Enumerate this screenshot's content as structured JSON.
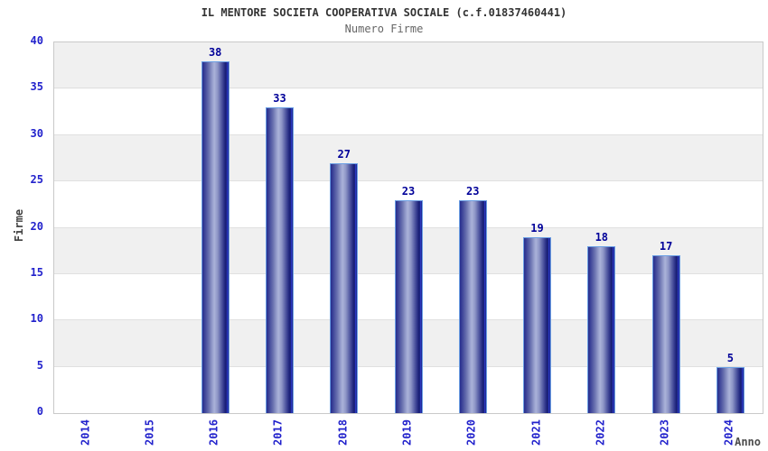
{
  "header": {
    "title": "IL MENTORE SOCIETA COOPERATIVA SOCIALE (c.f.01837460441)",
    "subtitle": "Numero Firme"
  },
  "chart_data": {
    "type": "bar",
    "title": "IL MENTORE SOCIETA COOPERATIVA SOCIALE (c.f.01837460441)",
    "subtitle": "Numero Firme",
    "xlabel": "Anno",
    "ylabel": "Firme",
    "categories": [
      "2014",
      "2015",
      "2016",
      "2017",
      "2018",
      "2019",
      "2020",
      "2021",
      "2022",
      "2023",
      "2024"
    ],
    "values": [
      0,
      0,
      38,
      33,
      27,
      23,
      23,
      19,
      18,
      17,
      5
    ],
    "ylim": [
      0,
      40
    ],
    "ytick_step": 5,
    "y_ticks": [
      0,
      5,
      10,
      15,
      20,
      25,
      30,
      35,
      40
    ],
    "grid": "horizontal-bands-alternating",
    "legend_position": "none",
    "bar_value_labels_shown": true,
    "colors": {
      "bar_dark": "#1a2078",
      "bar_light": "#aab2d8",
      "bar_edge_highlight": "#2e3fd4",
      "bar_border": "#6b9fe4",
      "tick_label": "#2222cc",
      "value_label": "#000099",
      "band_gray": "#f0f0f0",
      "band_white": "#ffffff",
      "gridline": "#e0e0e0",
      "plot_border": "#c9c9c9",
      "title_color": "#333333",
      "subtitle_color": "#666666",
      "axis_title_color": "#4d4d4d",
      "background": "#ffffff"
    }
  }
}
